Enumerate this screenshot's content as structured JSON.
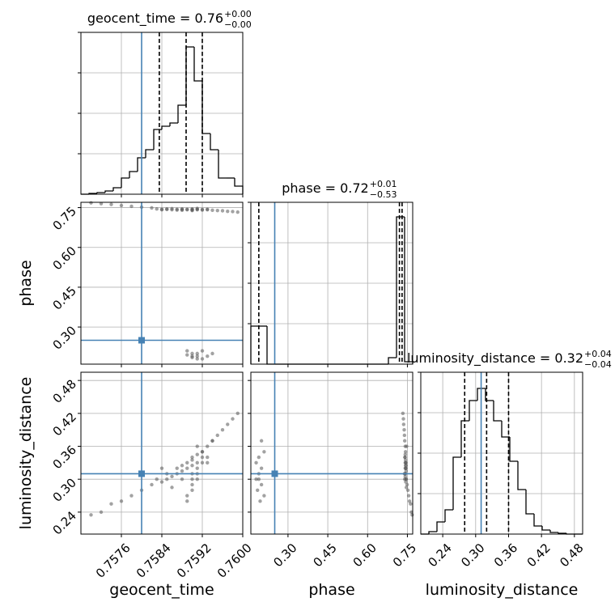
{
  "chart_data": {
    "type": "corner",
    "truth_color": "#4682b4",
    "hist_color": "#000000",
    "point_color": "#555555",
    "grid": true,
    "hist_ylim": [
      0,
      200
    ],
    "hist_yticks": [
      50,
      100,
      150,
      200
    ],
    "parameters": [
      {
        "label": "geocent_time",
        "title": "geocent_time = 0.76",
        "upper": "+0.00",
        "lower": "−0.00",
        "lim": [
          0.7568,
          0.76
        ],
        "ticks": [
          0.7576,
          0.7584,
          0.7592,
          {
            "value": 0.76,
            "label": "0.7600"
          }
        ],
        "truth": 0.758,
        "quantiles": [
          0.75835,
          0.75888,
          0.7592
        ],
        "bins": [
          0.7568,
          0.75696,
          0.75712,
          0.75728,
          0.75744,
          0.7576,
          0.75776,
          0.75792,
          0.75808,
          0.75824,
          0.7584,
          0.75856,
          0.75872,
          0.75888,
          0.75904,
          0.7592,
          0.75936,
          0.75952,
          0.75968,
          0.75984,
          0.76
        ],
        "counts": [
          0,
          1,
          2,
          4,
          8,
          20,
          28,
          45,
          55,
          80,
          84,
          88,
          110,
          182,
          140,
          75,
          55,
          20,
          20,
          10
        ]
      },
      {
        "label": "phase",
        "title": "phase = 0.72",
        "upper": "+0.01",
        "lower": "−0.53",
        "lim": [
          0.16,
          0.77
        ],
        "ticks": [
          {
            "value": 0.3,
            "label": "0.30"
          },
          0.45,
          {
            "value": 0.6,
            "label": "0.60"
          },
          0.75
        ],
        "truth": 0.25,
        "quantiles": [
          0.19,
          0.72,
          0.73
        ],
        "bins": [
          0.16,
          0.1905,
          0.221,
          0.2515,
          0.282,
          0.3125,
          0.343,
          0.3735,
          0.404,
          0.4345,
          0.465,
          0.4955,
          0.526,
          0.5565,
          0.587,
          0.6175,
          0.648,
          0.6785,
          0.709,
          0.7395,
          0.77
        ],
        "counts": [
          47,
          47,
          0,
          0,
          0,
          0,
          0,
          0,
          0,
          0,
          0,
          0,
          0,
          0,
          0,
          0,
          0,
          8,
          182,
          3
        ]
      },
      {
        "label": "luminosity_distance",
        "title": "luminosity_distance = 0.32",
        "upper": "+0.04",
        "lower": "−0.04",
        "lim": [
          0.2,
          0.495
        ],
        "ticks": [
          0.24,
          {
            "value": 0.3,
            "label": "0.30"
          },
          0.36,
          0.42,
          0.48
        ],
        "truth": 0.31,
        "quantiles": [
          0.28,
          0.32,
          0.36
        ],
        "bins": [
          0.2,
          0.21475,
          0.2295,
          0.24425,
          0.259,
          0.27375,
          0.2885,
          0.30325,
          0.318,
          0.33275,
          0.3475,
          0.36225,
          0.377,
          0.39175,
          0.4065,
          0.42125,
          0.436,
          0.45075,
          0.4655,
          0.48025,
          0.495
        ],
        "counts": [
          0,
          3,
          15,
          30,
          95,
          140,
          165,
          180,
          165,
          140,
          120,
          90,
          55,
          25,
          10,
          5,
          2,
          1,
          0,
          0
        ]
      }
    ],
    "samples": [
      [
        0.757,
        0.7572,
        0.7574,
        0.7576,
        0.7578,
        0.758,
        0.7582,
        0.7583,
        0.7584,
        0.7585,
        0.7585,
        0.7586,
        0.7587,
        0.7587,
        0.7588,
        0.7588,
        0.7589,
        0.7589,
        0.759,
        0.759,
        0.759,
        0.7591,
        0.7591,
        0.7592,
        0.7592,
        0.7593,
        0.7594,
        0.7595,
        0.7596,
        0.7597,
        0.7598,
        0.7599,
        0.7586,
        0.7588,
        0.7591,
        0.7593,
        0.7584,
        0.759,
        0.7589,
        0.759,
        0.759,
        0.7591,
        0.7591,
        0.7592,
        0.7592,
        0.7593,
        0.759,
        0.7594,
        0.7589,
        0.7591
      ],
      [
        0.768,
        0.765,
        0.762,
        0.758,
        0.755,
        0.752,
        0.749,
        0.745,
        0.744,
        0.743,
        0.745,
        0.742,
        0.744,
        0.741,
        0.743,
        0.745,
        0.742,
        0.744,
        0.741,
        0.743,
        0.745,
        0.742,
        0.744,
        0.743,
        0.741,
        0.742,
        0.74,
        0.739,
        0.738,
        0.736,
        0.735,
        0.733,
        0.746,
        0.74,
        0.747,
        0.744,
        0.742,
        0.739,
        0.21,
        0.2,
        0.19,
        0.2,
        0.19,
        0.18,
        0.21,
        0.19,
        0.185,
        0.2,
        0.195,
        0.18
      ],
      [
        0.235,
        0.24,
        0.255,
        0.26,
        0.27,
        0.28,
        0.29,
        0.3,
        0.295,
        0.31,
        0.3,
        0.305,
        0.32,
        0.31,
        0.325,
        0.315,
        0.33,
        0.32,
        0.34,
        0.335,
        0.325,
        0.345,
        0.33,
        0.35,
        0.34,
        0.36,
        0.37,
        0.38,
        0.39,
        0.4,
        0.41,
        0.42,
        0.285,
        0.3,
        0.36,
        0.33,
        0.32,
        0.31,
        0.27,
        0.29,
        0.3,
        0.32,
        0.31,
        0.33,
        0.35,
        0.34,
        0.28,
        0.37,
        0.26,
        0.3
      ]
    ]
  }
}
